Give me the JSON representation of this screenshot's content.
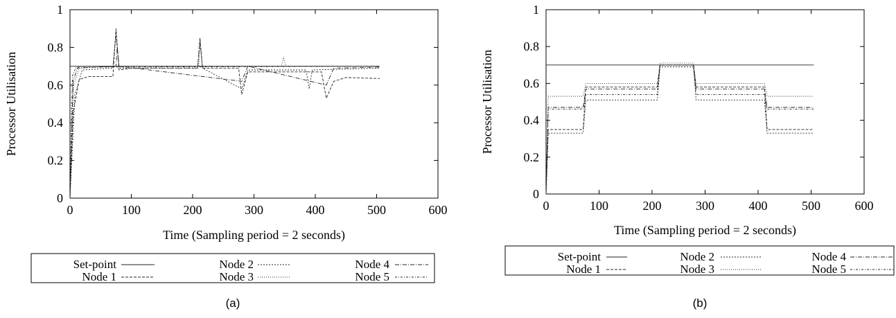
{
  "chart_data": [
    {
      "type": "line",
      "caption": "(a)",
      "xlabel": "Time (Sampling period = 2 seconds)",
      "ylabel": "Processor Utilisation",
      "xlim": [
        0,
        600
      ],
      "ylim": [
        0,
        1
      ],
      "xticks": [
        0,
        100,
        200,
        300,
        400,
        500,
        600
      ],
      "yticks": [
        0,
        0.2,
        0.4,
        0.6,
        0.8,
        1
      ],
      "ytick_labels": [
        "0",
        "0.2",
        "0.4",
        "0.6",
        "0.8",
        "1"
      ],
      "grid": false,
      "legend": [
        "Set-point",
        "Node 1",
        "Node 2",
        "Node 3",
        "Node 4",
        "Node 5"
      ],
      "series": [
        {
          "name": "Set-point",
          "segments": [
            [
              0,
              0.7
            ],
            [
              505,
              0.7
            ]
          ]
        },
        {
          "name": "Node 1",
          "segments": [
            [
              0,
              0.0
            ],
            [
              5,
              0.45
            ],
            [
              15,
              0.63
            ],
            [
              30,
              0.645
            ],
            [
              70,
              0.645
            ],
            [
              75,
              0.9
            ],
            [
              80,
              0.68
            ],
            [
              100,
              0.69
            ],
            [
              208,
              0.69
            ],
            [
              212,
              0.85
            ],
            [
              216,
              0.69
            ],
            [
              275,
              0.69
            ],
            [
              280,
              0.55
            ],
            [
              290,
              0.67
            ],
            [
              410,
              0.67
            ],
            [
              418,
              0.53
            ],
            [
              430,
              0.62
            ],
            [
              450,
              0.64
            ],
            [
              505,
              0.635
            ]
          ]
        },
        {
          "name": "Node 2",
          "segments": [
            [
              0,
              0.0
            ],
            [
              8,
              0.55
            ],
            [
              20,
              0.68
            ],
            [
              70,
              0.69
            ],
            [
              75,
              0.88
            ],
            [
              80,
              0.69
            ],
            [
              208,
              0.69
            ],
            [
              212,
              0.84
            ],
            [
              216,
              0.69
            ],
            [
              280,
              0.58
            ],
            [
              290,
              0.68
            ],
            [
              385,
              0.68
            ],
            [
              390,
              0.58
            ],
            [
              395,
              0.68
            ],
            [
              505,
              0.69
            ]
          ]
        },
        {
          "name": "Node 3",
          "segments": [
            [
              0,
              0.0
            ],
            [
              6,
              0.6
            ],
            [
              15,
              0.69
            ],
            [
              70,
              0.7
            ],
            [
              75,
              0.86
            ],
            [
              80,
              0.7
            ],
            [
              210,
              0.7
            ],
            [
              212,
              0.82
            ],
            [
              216,
              0.7
            ],
            [
              345,
              0.7
            ],
            [
              348,
              0.75
            ],
            [
              352,
              0.7
            ],
            [
              505,
              0.7
            ]
          ]
        },
        {
          "name": "Node 4",
          "segments": [
            [
              0,
              0.0
            ],
            [
              5,
              0.62
            ],
            [
              12,
              0.69
            ],
            [
              75,
              0.7
            ],
            [
              77,
              0.8
            ],
            [
              80,
              0.7
            ],
            [
              280,
              0.62
            ],
            [
              290,
              0.7
            ],
            [
              418,
              0.6
            ],
            [
              430,
              0.69
            ],
            [
              505,
              0.695
            ]
          ]
        },
        {
          "name": "Node 5",
          "segments": [
            [
              0,
              0.0
            ],
            [
              4,
              0.65
            ],
            [
              10,
              0.695
            ],
            [
              505,
              0.7
            ]
          ]
        }
      ]
    },
    {
      "type": "line",
      "caption": "(b)",
      "xlabel": "Time (Sampling period = 2 seconds)",
      "ylabel": "Processor Utilisation",
      "xlim": [
        0,
        600
      ],
      "ylim": [
        0,
        1
      ],
      "xticks": [
        0,
        100,
        200,
        300,
        400,
        500,
        600
      ],
      "yticks": [
        0,
        0.2,
        0.4,
        0.6,
        0.8,
        1
      ],
      "ytick_labels": [
        "0",
        "0.2",
        "0.4",
        "0.6",
        "0.8",
        "1"
      ],
      "grid": false,
      "legend": [
        "Set-point",
        "Node 1",
        "Node 2",
        "Node 3",
        "Node 4",
        "Node 5"
      ],
      "series": [
        {
          "name": "Set-point",
          "segments": [
            [
              0,
              0.7
            ],
            [
              505,
              0.7
            ]
          ]
        },
        {
          "name": "Node 1",
          "segments": [
            [
              0,
              0.0
            ],
            [
              4,
              0.35
            ],
            [
              10,
              0.35
            ],
            [
              70,
              0.35
            ],
            [
              75,
              0.58
            ],
            [
              210,
              0.58
            ],
            [
              215,
              0.7
            ],
            [
              278,
              0.7
            ],
            [
              283,
              0.58
            ],
            [
              412,
              0.58
            ],
            [
              417,
              0.35
            ],
            [
              505,
              0.35
            ]
          ]
        },
        {
          "name": "Node 2",
          "segments": [
            [
              0,
              0.0
            ],
            [
              4,
              0.33
            ],
            [
              70,
              0.33
            ],
            [
              75,
              0.51
            ],
            [
              210,
              0.51
            ],
            [
              215,
              0.69
            ],
            [
              278,
              0.69
            ],
            [
              283,
              0.51
            ],
            [
              412,
              0.51
            ],
            [
              417,
              0.33
            ],
            [
              505,
              0.33
            ]
          ]
        },
        {
          "name": "Node 3",
          "segments": [
            [
              0,
              0.0
            ],
            [
              4,
              0.53
            ],
            [
              70,
              0.53
            ],
            [
              75,
              0.6
            ],
            [
              210,
              0.6
            ],
            [
              215,
              0.71
            ],
            [
              278,
              0.71
            ],
            [
              283,
              0.6
            ],
            [
              412,
              0.6
            ],
            [
              417,
              0.53
            ],
            [
              505,
              0.53
            ]
          ]
        },
        {
          "name": "Node 4",
          "segments": [
            [
              0,
              0.0
            ],
            [
              4,
              0.47
            ],
            [
              70,
              0.47
            ],
            [
              75,
              0.57
            ],
            [
              210,
              0.57
            ],
            [
              215,
              0.7
            ],
            [
              278,
              0.7
            ],
            [
              283,
              0.57
            ],
            [
              412,
              0.57
            ],
            [
              417,
              0.47
            ],
            [
              505,
              0.47
            ]
          ]
        },
        {
          "name": "Node 5",
          "segments": [
            [
              0,
              0.0
            ],
            [
              4,
              0.46
            ],
            [
              70,
              0.46
            ],
            [
              75,
              0.54
            ],
            [
              210,
              0.54
            ],
            [
              215,
              0.7
            ],
            [
              278,
              0.7
            ],
            [
              283,
              0.54
            ],
            [
              412,
              0.54
            ],
            [
              417,
              0.46
            ],
            [
              505,
              0.46
            ]
          ]
        }
      ]
    }
  ]
}
